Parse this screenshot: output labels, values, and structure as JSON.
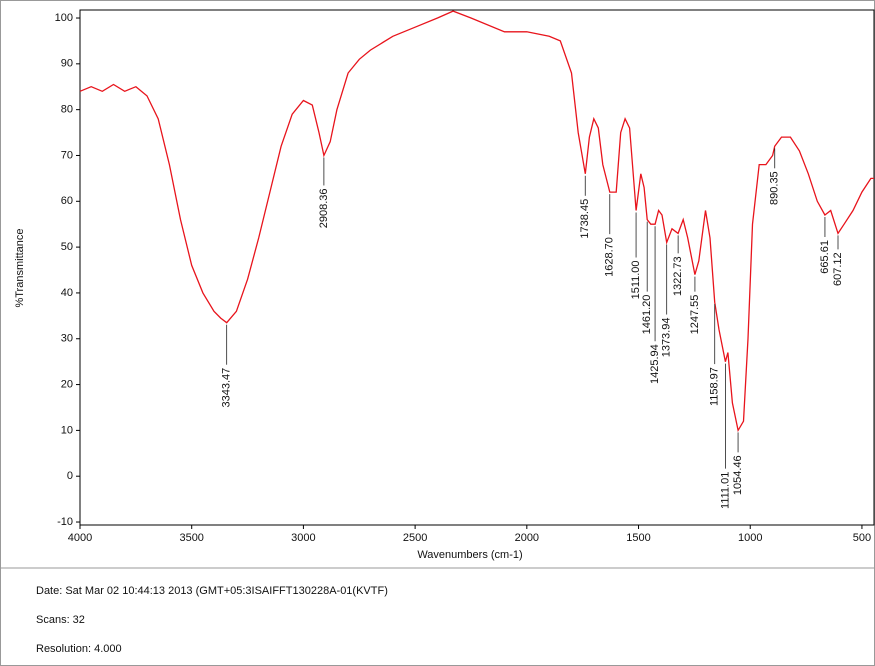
{
  "chart_data": {
    "type": "line",
    "xlabel": "Wavenumbers (cm-1)",
    "ylabel": "%Transmittance",
    "color": "#e8141c",
    "x": [
      4000,
      3950,
      3900,
      3850,
      3800,
      3750,
      3700,
      3650,
      3600,
      3550,
      3500,
      3450,
      3400,
      3370,
      3343.47,
      3300,
      3250,
      3200,
      3150,
      3100,
      3050,
      3000,
      2960,
      2930,
      2908.36,
      2880,
      2850,
      2800,
      2750,
      2700,
      2600,
      2500,
      2400,
      2330,
      2250,
      2100,
      2000,
      1900,
      1850,
      1800,
      1770,
      1738.45,
      1720,
      1700,
      1680,
      1660,
      1628.7,
      1600,
      1580,
      1560,
      1540,
      1511,
      1490,
      1475,
      1461.2,
      1445,
      1425.94,
      1410,
      1395,
      1373.94,
      1350,
      1322.73,
      1300,
      1280,
      1247.55,
      1230,
      1200,
      1180,
      1158.97,
      1140,
      1111.01,
      1100,
      1080,
      1054.46,
      1030,
      1010,
      990,
      960,
      930,
      900,
      890.35,
      860,
      820,
      780,
      740,
      700,
      665.61,
      640,
      607.12,
      580,
      540,
      500,
      460,
      446
    ],
    "values": [
      84,
      85,
      84,
      85.5,
      84,
      85,
      83,
      78,
      68,
      56,
      46,
      40,
      36,
      34.5,
      33.5,
      36,
      43,
      52,
      62,
      72,
      79,
      82,
      81,
      75,
      70,
      73,
      80,
      88,
      91,
      93,
      96,
      98,
      100,
      101.5,
      100,
      97,
      97,
      96,
      95,
      88,
      75,
      66,
      74,
      78,
      76,
      68,
      62,
      62,
      75,
      78,
      76,
      58,
      66,
      63,
      56,
      55,
      55,
      58,
      57,
      51,
      54,
      53,
      56,
      52,
      44,
      47,
      58,
      52,
      38,
      32,
      25,
      27,
      16,
      10,
      12,
      30,
      55,
      68,
      68,
      70,
      72,
      74,
      74,
      71,
      66,
      60,
      57,
      58,
      53,
      55,
      58,
      62,
      65,
      65
    ],
    "peaks": [
      {
        "value": 3343.47,
        "label": "3343.47"
      },
      {
        "value": 2908.36,
        "label": "2908.36"
      },
      {
        "value": 1738.45,
        "label": "1738.45"
      },
      {
        "value": 1628.7,
        "label": "1628.70"
      },
      {
        "value": 1511,
        "label": "1511.00"
      },
      {
        "value": 1461.2,
        "label": "1461.20"
      },
      {
        "value": 1425.94,
        "label": "1425.94"
      },
      {
        "value": 1373.94,
        "label": "1373.94"
      },
      {
        "value": 1322.73,
        "label": "1322.73"
      },
      {
        "value": 1247.55,
        "label": "1247.55"
      },
      {
        "value": 1158.97,
        "label": "1158.97"
      },
      {
        "value": 1111.01,
        "label": "1111.01"
      },
      {
        "value": 1054.46,
        "label": "1054.46"
      },
      {
        "value": 890.35,
        "label": "890.35"
      },
      {
        "value": 665.61,
        "label": "665.61"
      },
      {
        "value": 607.12,
        "label": "607.12"
      }
    ],
    "xlim": [
      4000,
      446
    ],
    "ylim": [
      -10.65,
      101.75
    ],
    "xticks": [
      4000,
      3500,
      3000,
      2500,
      2000,
      1500,
      1000,
      500
    ],
    "yticks": [
      -10,
      0,
      10,
      20,
      30,
      40,
      50,
      60,
      70,
      80,
      90,
      100
    ]
  },
  "footer": {
    "lines": [
      "Date: Sat Mar 02 10:44:13 2013 (GMT+05:3ISAIFFT130228A-01(KVTF)",
      "Scans: 32",
      "Resolution:  4.000"
    ]
  }
}
